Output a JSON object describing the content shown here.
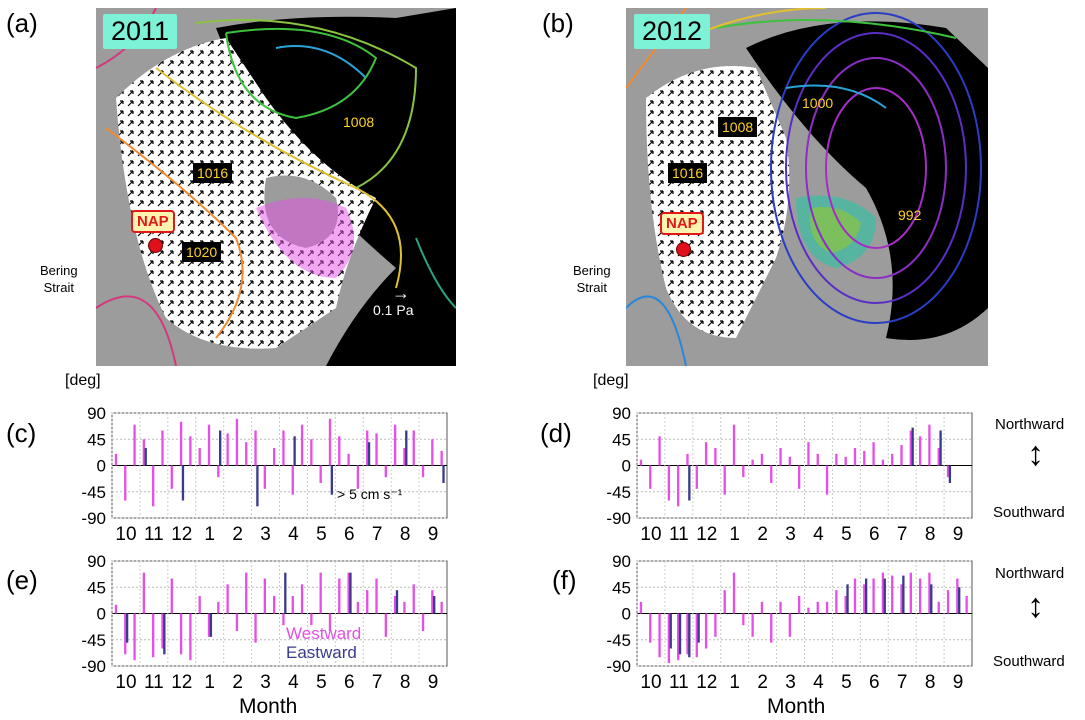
{
  "panels": {
    "a": {
      "label": "(a)",
      "year": "2011",
      "contours": [
        "1008",
        "1016",
        "1020"
      ],
      "site": "NAP",
      "strait": [
        "Bering",
        "Strait"
      ],
      "scale": "0.1 Pa"
    },
    "b": {
      "label": "(b)",
      "year": "2012",
      "contours": [
        "1000",
        "1008",
        "1016",
        "992"
      ],
      "site": "NAP",
      "strait": [
        "Bering",
        "Strait"
      ]
    }
  },
  "units": {
    "deg": "[deg]"
  },
  "labels": {
    "c": "(c)",
    "d": "(d)",
    "e": "(e)",
    "f": "(f)",
    "month": "Month",
    "threshold": "> 5 cm s⁻¹",
    "westward": "Westward",
    "eastward": "Eastward",
    "northward": "Northward",
    "southward": "Southward"
  },
  "colors": {
    "westward": "#e64fe6",
    "eastward": "#3b3b8c",
    "land": "#9c9c9c",
    "sea": "#000000",
    "label_bg": "#7ef2d6"
  },
  "chart_data": [
    {
      "id": "c",
      "type": "bar",
      "ylim": [
        -90,
        90
      ],
      "yticks": [
        90,
        45,
        0,
        -45,
        -90
      ],
      "xticks": [
        "10",
        "11",
        "12",
        "1",
        "2",
        "3",
        "4",
        "5",
        "6",
        "7",
        "8",
        "9"
      ],
      "annotation": "> 5 cm s⁻¹",
      "series": [
        {
          "name": "Westward",
          "values": [
            20,
            -60,
            70,
            45,
            -70,
            60,
            -40,
            75,
            50,
            30,
            70,
            -20,
            55,
            80,
            40,
            60,
            -40,
            30,
            60,
            -50,
            70,
            45,
            -30,
            80,
            50,
            20,
            -40,
            60,
            55,
            -20,
            70,
            30,
            60,
            -20,
            45,
            25
          ]
        },
        {
          "name": "Eastward",
          "values": [
            0,
            0,
            0,
            30,
            0,
            0,
            0,
            -60,
            0,
            0,
            0,
            60,
            0,
            0,
            0,
            -70,
            0,
            0,
            0,
            50,
            0,
            0,
            0,
            -50,
            0,
            0,
            0,
            40,
            0,
            0,
            0,
            60,
            0,
            0,
            0,
            -30
          ]
        }
      ]
    },
    {
      "id": "d",
      "type": "bar",
      "ylim": [
        -90,
        90
      ],
      "yticks": [
        90,
        45,
        0,
        -45,
        -90
      ],
      "xticks": [
        "10",
        "11",
        "12",
        "1",
        "2",
        "3",
        "4",
        "5",
        "6",
        "7",
        "8",
        "9"
      ],
      "series": [
        {
          "name": "Westward",
          "values": [
            10,
            -40,
            50,
            -60,
            -70,
            20,
            -40,
            40,
            30,
            -50,
            70,
            -20,
            10,
            20,
            -30,
            30,
            15,
            -40,
            40,
            20,
            -50,
            20,
            15,
            30,
            25,
            40,
            10,
            20,
            35,
            60,
            50,
            70,
            30,
            -20,
            0,
            0
          ]
        },
        {
          "name": "Eastward",
          "values": [
            0,
            0,
            0,
            0,
            0,
            -60,
            0,
            0,
            0,
            0,
            0,
            0,
            0,
            0,
            0,
            0,
            0,
            0,
            0,
            0,
            0,
            0,
            0,
            0,
            0,
            0,
            0,
            0,
            0,
            65,
            0,
            0,
            60,
            -30,
            0,
            0
          ]
        }
      ]
    },
    {
      "id": "e",
      "type": "bar",
      "ylim": [
        -90,
        90
      ],
      "yticks": [
        90,
        45,
        0,
        -45,
        -90
      ],
      "xticks": [
        "10",
        "11",
        "12",
        "1",
        "2",
        "3",
        "4",
        "5",
        "6",
        "7",
        "8",
        "9"
      ],
      "series": [
        {
          "name": "Westward",
          "values": [
            15,
            -70,
            -80,
            70,
            -75,
            -60,
            60,
            -70,
            -80,
            30,
            -40,
            20,
            50,
            -30,
            70,
            -50,
            60,
            30,
            -20,
            30,
            50,
            -20,
            70,
            -30,
            60,
            70,
            20,
            40,
            60,
            -40,
            30,
            20,
            50,
            -30,
            40,
            20
          ]
        },
        {
          "name": "Eastward",
          "values": [
            0,
            -50,
            0,
            0,
            0,
            -70,
            0,
            0,
            0,
            0,
            -40,
            0,
            0,
            0,
            0,
            0,
            0,
            0,
            70,
            0,
            0,
            0,
            0,
            0,
            0,
            70,
            0,
            0,
            0,
            0,
            40,
            0,
            0,
            0,
            30,
            0
          ]
        }
      ]
    },
    {
      "id": "f",
      "type": "bar",
      "ylim": [
        -90,
        90
      ],
      "yticks": [
        90,
        45,
        0,
        -45,
        -90
      ],
      "xticks": [
        "10",
        "11",
        "12",
        "1",
        "2",
        "3",
        "4",
        "5",
        "6",
        "7",
        "8",
        "9"
      ],
      "series": [
        {
          "name": "Westward",
          "values": [
            20,
            -50,
            -75,
            -85,
            -80,
            -70,
            -75,
            -60,
            -40,
            40,
            70,
            -20,
            -40,
            20,
            -50,
            20,
            -40,
            30,
            10,
            20,
            20,
            40,
            30,
            60,
            50,
            60,
            70,
            65,
            50,
            70,
            60,
            70,
            20,
            40,
            60,
            30
          ]
        },
        {
          "name": "Eastward",
          "values": [
            0,
            0,
            0,
            -60,
            -70,
            -75,
            -50,
            0,
            0,
            0,
            0,
            0,
            0,
            0,
            0,
            0,
            0,
            0,
            0,
            0,
            0,
            0,
            50,
            0,
            60,
            0,
            60,
            0,
            65,
            0,
            0,
            50,
            0,
            0,
            45,
            0
          ]
        }
      ]
    }
  ]
}
